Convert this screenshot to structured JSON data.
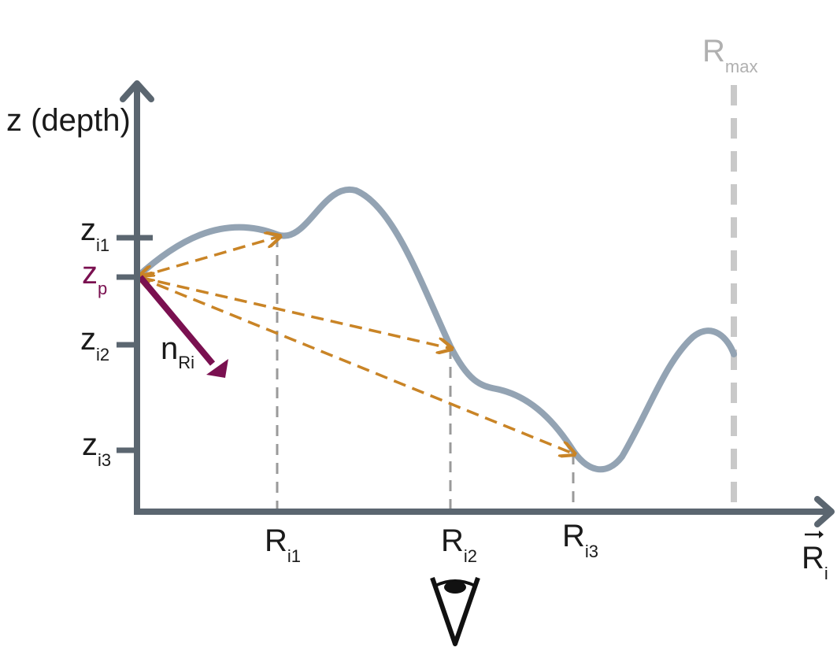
{
  "labels": {
    "y_axis": "z (depth)",
    "zi1_main": "z",
    "zi1_sub": "i1",
    "zp_main": "z",
    "zp_sub": "p",
    "zi2_main": "z",
    "zi2_sub": "i2",
    "zi3_main": "z",
    "zi3_sub": "i3",
    "n_main": "n",
    "n_sub": "Ri",
    "ri1_main": "R",
    "ri1_sub": "i1",
    "ri2_main": "R",
    "ri2_sub": "i2",
    "ri3_main": "R",
    "ri3_sub": "i3",
    "rmax_main": "R",
    "rmax_sub": "max",
    "ri_axis_main": "R",
    "ri_axis_sub": "i"
  },
  "colors": {
    "axis": "#5b6670",
    "terrain": "#93a3b3",
    "ray": "#c98426",
    "normal": "#7a1050",
    "zp_label": "#7a1050",
    "guide": "#9a9a9a",
    "rmax": "#c9c9c9"
  },
  "icons": {
    "observer": "eye-icon"
  }
}
